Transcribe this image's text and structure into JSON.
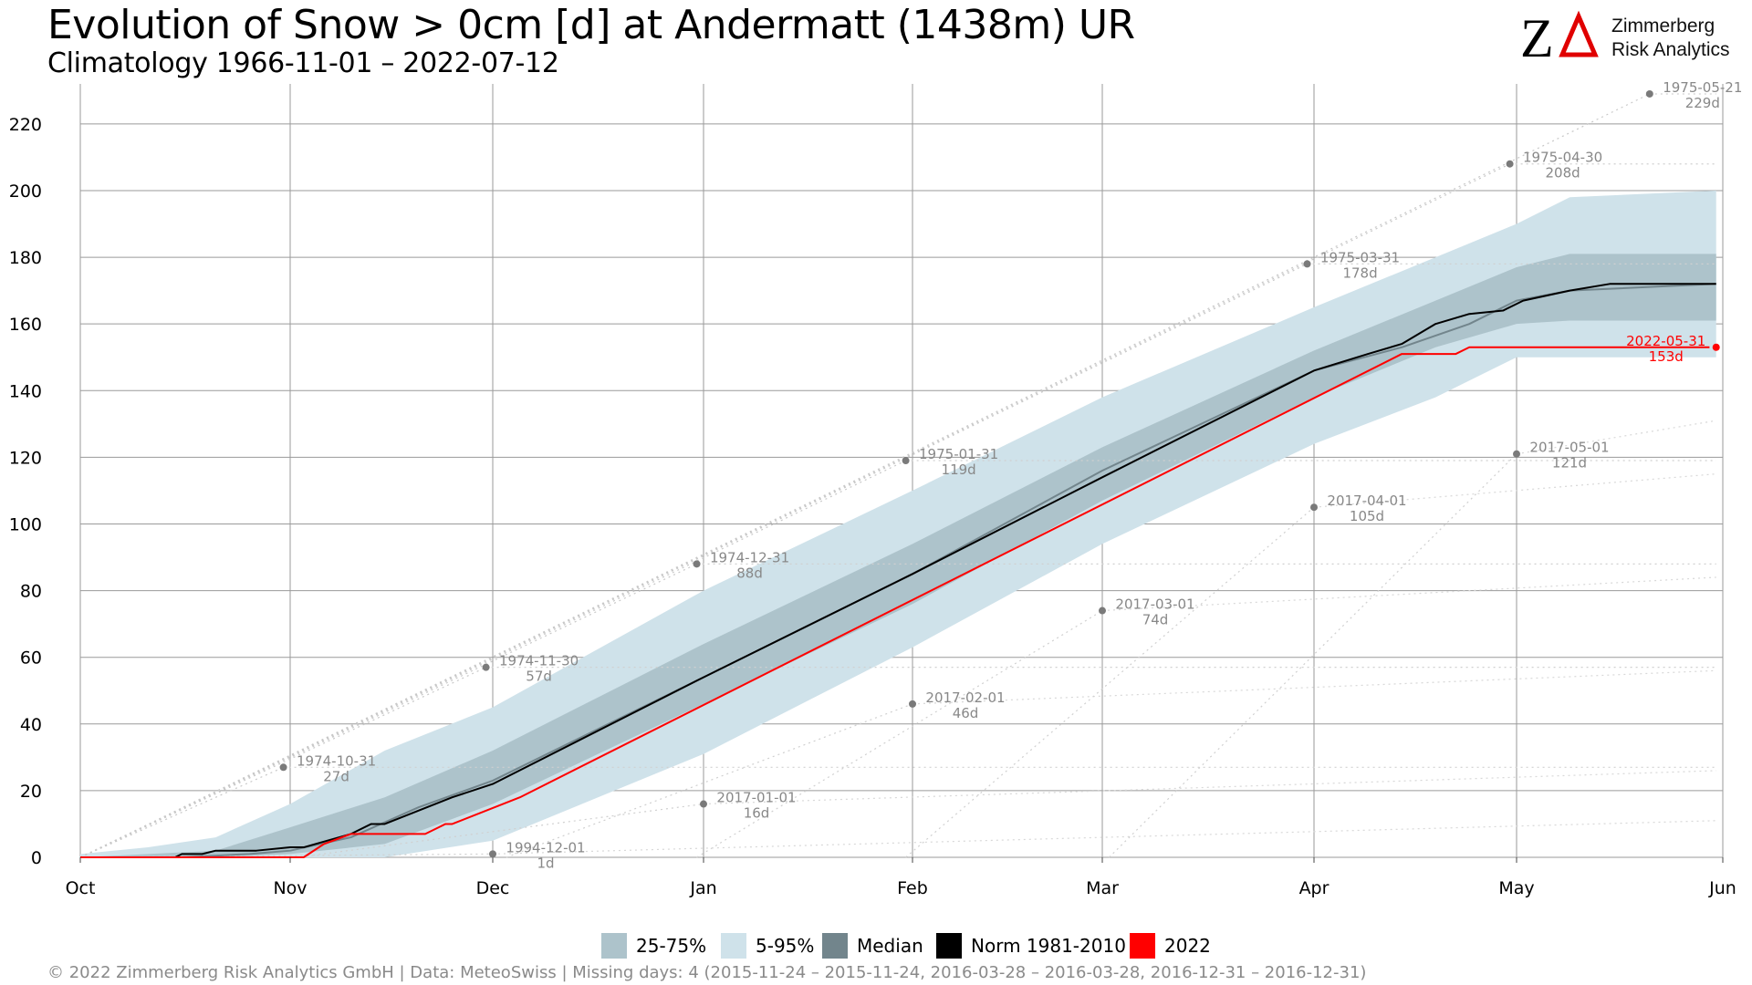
{
  "header": {
    "title": "Evolution of Snow > 0cm [d] at Andermatt (1438m) UR",
    "subtitle": "Climatology 1966-11-01 – 2022-07-12"
  },
  "logo": {
    "mark": "ZΔ",
    "line1": "Zimmerberg",
    "line2": "Risk Analytics",
    "accent_color": "#e00000"
  },
  "legend": [
    {
      "label": "25-75%",
      "color": "#adc3cb"
    },
    {
      "label": "5-95%",
      "color": "#cfe2ea"
    },
    {
      "label": "Median",
      "color": "#72858c"
    },
    {
      "label": "Norm 1981-2010",
      "color": "#000000"
    },
    {
      "label": "2022",
      "color": "#ff0000"
    }
  ],
  "footer": "©  2022 Zimmerberg Risk Analytics GmbH | Data: MeteoSwiss | Missing days: 4 (2015-11-24 – 2015-11-24, 2016-03-28 – 2016-03-28, 2016-12-31 – 2016-12-31)",
  "chart_data": {
    "type": "area",
    "x_unit": "day of season starting Oct 1",
    "x_range": [
      0,
      243
    ],
    "ylim": [
      0,
      232
    ],
    "y_ticks": [
      0,
      20,
      40,
      60,
      80,
      100,
      120,
      140,
      160,
      180,
      200,
      220
    ],
    "month_ticks": [
      {
        "label": "Oct",
        "x": 0
      },
      {
        "label": "Nov",
        "x": 31
      },
      {
        "label": "Dec",
        "x": 61
      },
      {
        "label": "Jan",
        "x": 92
      },
      {
        "label": "Feb",
        "x": 123
      },
      {
        "label": "Mar",
        "x": 151
      },
      {
        "label": "Apr",
        "x": 182
      },
      {
        "label": "May",
        "x": 212
      },
      {
        "label": "Jun",
        "x": 243
      }
    ],
    "grid": true,
    "legend_position": "bottom",
    "bands": {
      "p5_p95": {
        "x": [
          0,
          10,
          20,
          31,
          45,
          61,
          92,
          123,
          151,
          182,
          200,
          212,
          220,
          242
        ],
        "low": [
          0,
          0,
          0,
          0,
          0,
          5,
          31,
          63,
          94,
          124,
          138,
          150,
          150,
          150
        ],
        "high": [
          1,
          3,
          6,
          16,
          32,
          45,
          80,
          110,
          138,
          165,
          180,
          190,
          198,
          200
        ]
      },
      "p25_p75": {
        "x": [
          0,
          10,
          20,
          31,
          45,
          61,
          92,
          123,
          151,
          182,
          200,
          212,
          220,
          242
        ],
        "low": [
          0,
          0,
          0,
          1,
          4,
          16,
          46,
          76,
          107,
          138,
          153,
          160,
          161,
          161
        ],
        "high": [
          0,
          1,
          2,
          9,
          18,
          32,
          64,
          94,
          123,
          152,
          167,
          177,
          181,
          181
        ]
      }
    },
    "series": [
      {
        "name": "Median",
        "x": [
          0,
          15,
          25,
          31,
          40,
          50,
          61,
          92,
          123,
          151,
          182,
          195,
          205,
          212,
          220,
          242
        ],
        "y": [
          0,
          0,
          1,
          2,
          6,
          15,
          23,
          54,
          85,
          116,
          146,
          153,
          160,
          167,
          170,
          172
        ]
      },
      {
        "name": "Norm 1981-2010",
        "x": [
          0,
          14,
          15,
          18,
          20,
          26,
          31,
          33,
          40,
          43,
          45,
          50,
          55,
          61,
          92,
          123,
          151,
          182,
          190,
          195,
          200,
          205,
          210,
          213,
          220,
          226,
          242
        ],
        "y": [
          0,
          0,
          1,
          1,
          2,
          2,
          3,
          3,
          7,
          10,
          10,
          14,
          18,
          22,
          54,
          85,
          114,
          146,
          151,
          154,
          160,
          163,
          164,
          167,
          170,
          172,
          172
        ]
      },
      {
        "name": "2022",
        "x": [
          0,
          33,
          36,
          40,
          51,
          53,
          54,
          55,
          65,
          195,
          203,
          205,
          241
        ],
        "y": [
          0,
          0,
          4,
          7,
          7,
          9,
          10,
          10,
          18,
          151,
          151,
          153,
          153
        ]
      }
    ],
    "extremes": {
      "max_points": [
        {
          "x": 30,
          "y": 27,
          "date": "1974-10-31",
          "value": "27d"
        },
        {
          "x": 60,
          "y": 57,
          "date": "1974-11-30",
          "value": "57d"
        },
        {
          "x": 91,
          "y": 88,
          "date": "1974-12-31",
          "value": "88d"
        },
        {
          "x": 122,
          "y": 119,
          "date": "1975-01-31",
          "value": "119d"
        },
        {
          "x": 181,
          "y": 178,
          "date": "1975-03-31",
          "value": "178d"
        },
        {
          "x": 211,
          "y": 208,
          "date": "1975-04-30",
          "value": "208d"
        },
        {
          "x": 232,
          "y": 229,
          "date": "1975-05-21",
          "value": "229d"
        }
      ],
      "min_points": [
        {
          "x": 61,
          "y": 1,
          "date": "1994-12-01",
          "value": "1d"
        },
        {
          "x": 92,
          "y": 16,
          "date": "2017-01-01",
          "value": "16d"
        },
        {
          "x": 123,
          "y": 46,
          "date": "2017-02-01",
          "value": "46d"
        },
        {
          "x": 151,
          "y": 74,
          "date": "2017-03-01",
          "value": "74d"
        },
        {
          "x": 182,
          "y": 105,
          "date": "2017-04-01",
          "value": "105d"
        },
        {
          "x": 212,
          "y": 121,
          "date": "2017-05-01",
          "value": "121d"
        }
      ],
      "current_point": {
        "x": 242,
        "y": 153,
        "date": "2022-05-31",
        "value": "153d"
      }
    }
  }
}
